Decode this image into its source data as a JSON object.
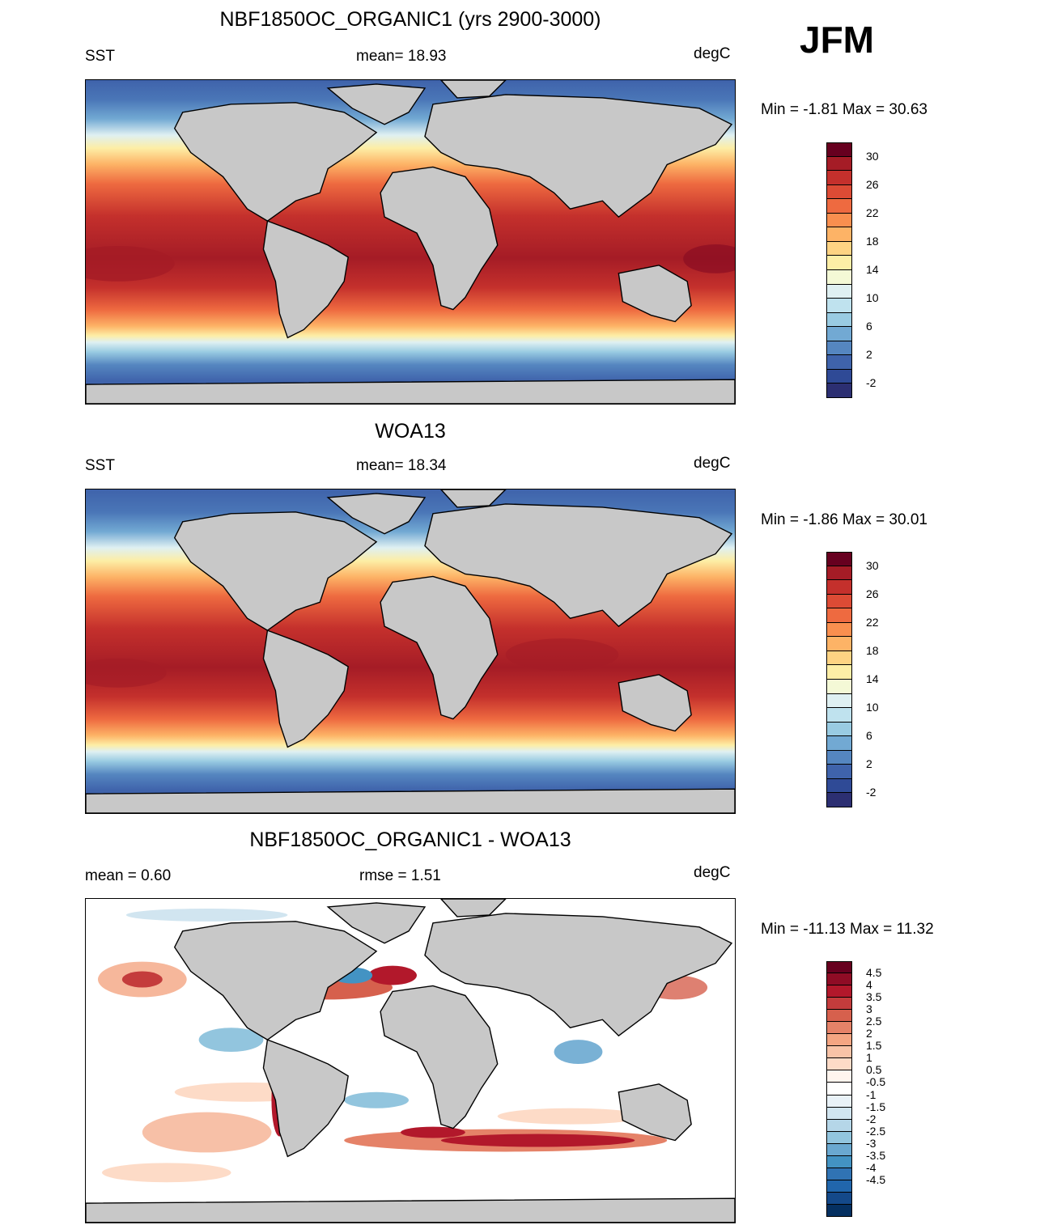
{
  "season": "JFM",
  "panels": [
    {
      "title": "NBF1850OC_ORGANIC1 (yrs 2900-3000)",
      "left_label": "SST",
      "center_label": "mean=  18.93",
      "right_label": "degC",
      "minmax": "Min =  -1.81 Max =  30.63",
      "field": "sst_model"
    },
    {
      "title": "WOA13",
      "left_label": "SST",
      "center_label": "mean=  18.34",
      "right_label": "degC",
      "minmax": "Min =  -1.86 Max =  30.01",
      "field": "sst_obs"
    },
    {
      "title": "NBF1850OC_ORGANIC1 - WOA13",
      "left_label": "mean =   0.60",
      "center_label": "rmse =   1.51",
      "right_label": "degC",
      "minmax": "Min = -11.13 Max =  11.32",
      "field": "sst_diff"
    }
  ],
  "colorbars": {
    "sst": {
      "ticks": [
        "30",
        "26",
        "22",
        "18",
        "14",
        "10",
        "6",
        "2",
        "-2"
      ],
      "colors": [
        "#67001f",
        "#a51c26",
        "#c4302c",
        "#dc4b35",
        "#ee6a40",
        "#f98f4f",
        "#fdb366",
        "#fed383",
        "#fdeea6",
        "#f4f9d6",
        "#dff0f2",
        "#bfe2ee",
        "#99cbe2",
        "#72a9d3",
        "#5586c0",
        "#3f63ab",
        "#2f4a96",
        "#2c2f72"
      ]
    },
    "diff": {
      "ticks": [
        "4.5",
        "4",
        "3.5",
        "3",
        "2.5",
        "2",
        "1.5",
        "1",
        "0.5",
        "-0.5",
        "-1",
        "-1.5",
        "-2",
        "-2.5",
        "-3",
        "-3.5",
        "-4",
        "-4.5"
      ],
      "colors": [
        "#67001f",
        "#8f0c25",
        "#b2182b",
        "#c43c3c",
        "#d6604d",
        "#e58268",
        "#f4a582",
        "#f8c3a7",
        "#fddbc7",
        "#fff5ee",
        "#ffffff",
        "#e9f2f8",
        "#d1e5f0",
        "#b5d6e8",
        "#92c5de",
        "#6aa8d0",
        "#4393c3",
        "#3073b4",
        "#2166ac",
        "#14498a",
        "#053061"
      ]
    }
  }
}
